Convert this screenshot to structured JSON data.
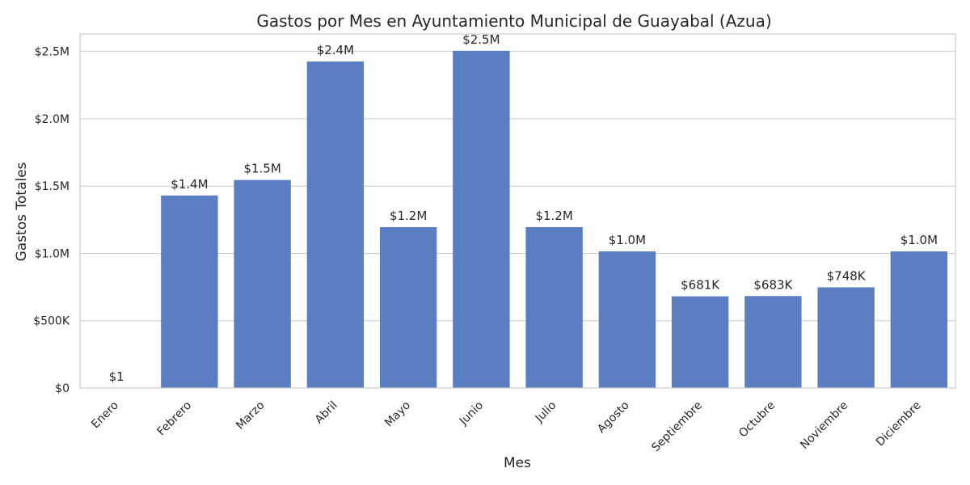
{
  "chart_data": {
    "type": "bar",
    "title": "Gastos por Mes en Ayuntamiento Municipal de Guayabal (Azua)",
    "xlabel": "Mes",
    "ylabel": "Gastos Totales",
    "categories": [
      "Enero",
      "Febrero",
      "Marzo",
      "Abril",
      "Mayo",
      "Junio",
      "Julio",
      "Agosto",
      "Septiembre",
      "Octubre",
      "Noviembre",
      "Diciembre"
    ],
    "values": [
      1,
      1430000,
      1545000,
      2425000,
      1195000,
      2505000,
      1195000,
      1015000,
      681000,
      683000,
      748000,
      1015000
    ],
    "data_labels": [
      "$1",
      "$1.4M",
      "$1.5M",
      "$2.4M",
      "$1.2M",
      "$2.5M",
      "$1.2M",
      "$1.0M",
      "$681K",
      "$683K",
      "$748K",
      "$1.0M"
    ],
    "ylim": [
      0,
      2630000
    ],
    "yticks": [
      0,
      500000,
      1000000,
      1500000,
      2000000,
      2500000
    ],
    "ytick_labels": [
      "$0",
      "$500K",
      "$1.0M",
      "$1.5M",
      "$2.0M",
      "$2.5M"
    ],
    "grid": "horizontal",
    "bar_color": "#5b7ec2",
    "grid_color": "#cccccc"
  }
}
